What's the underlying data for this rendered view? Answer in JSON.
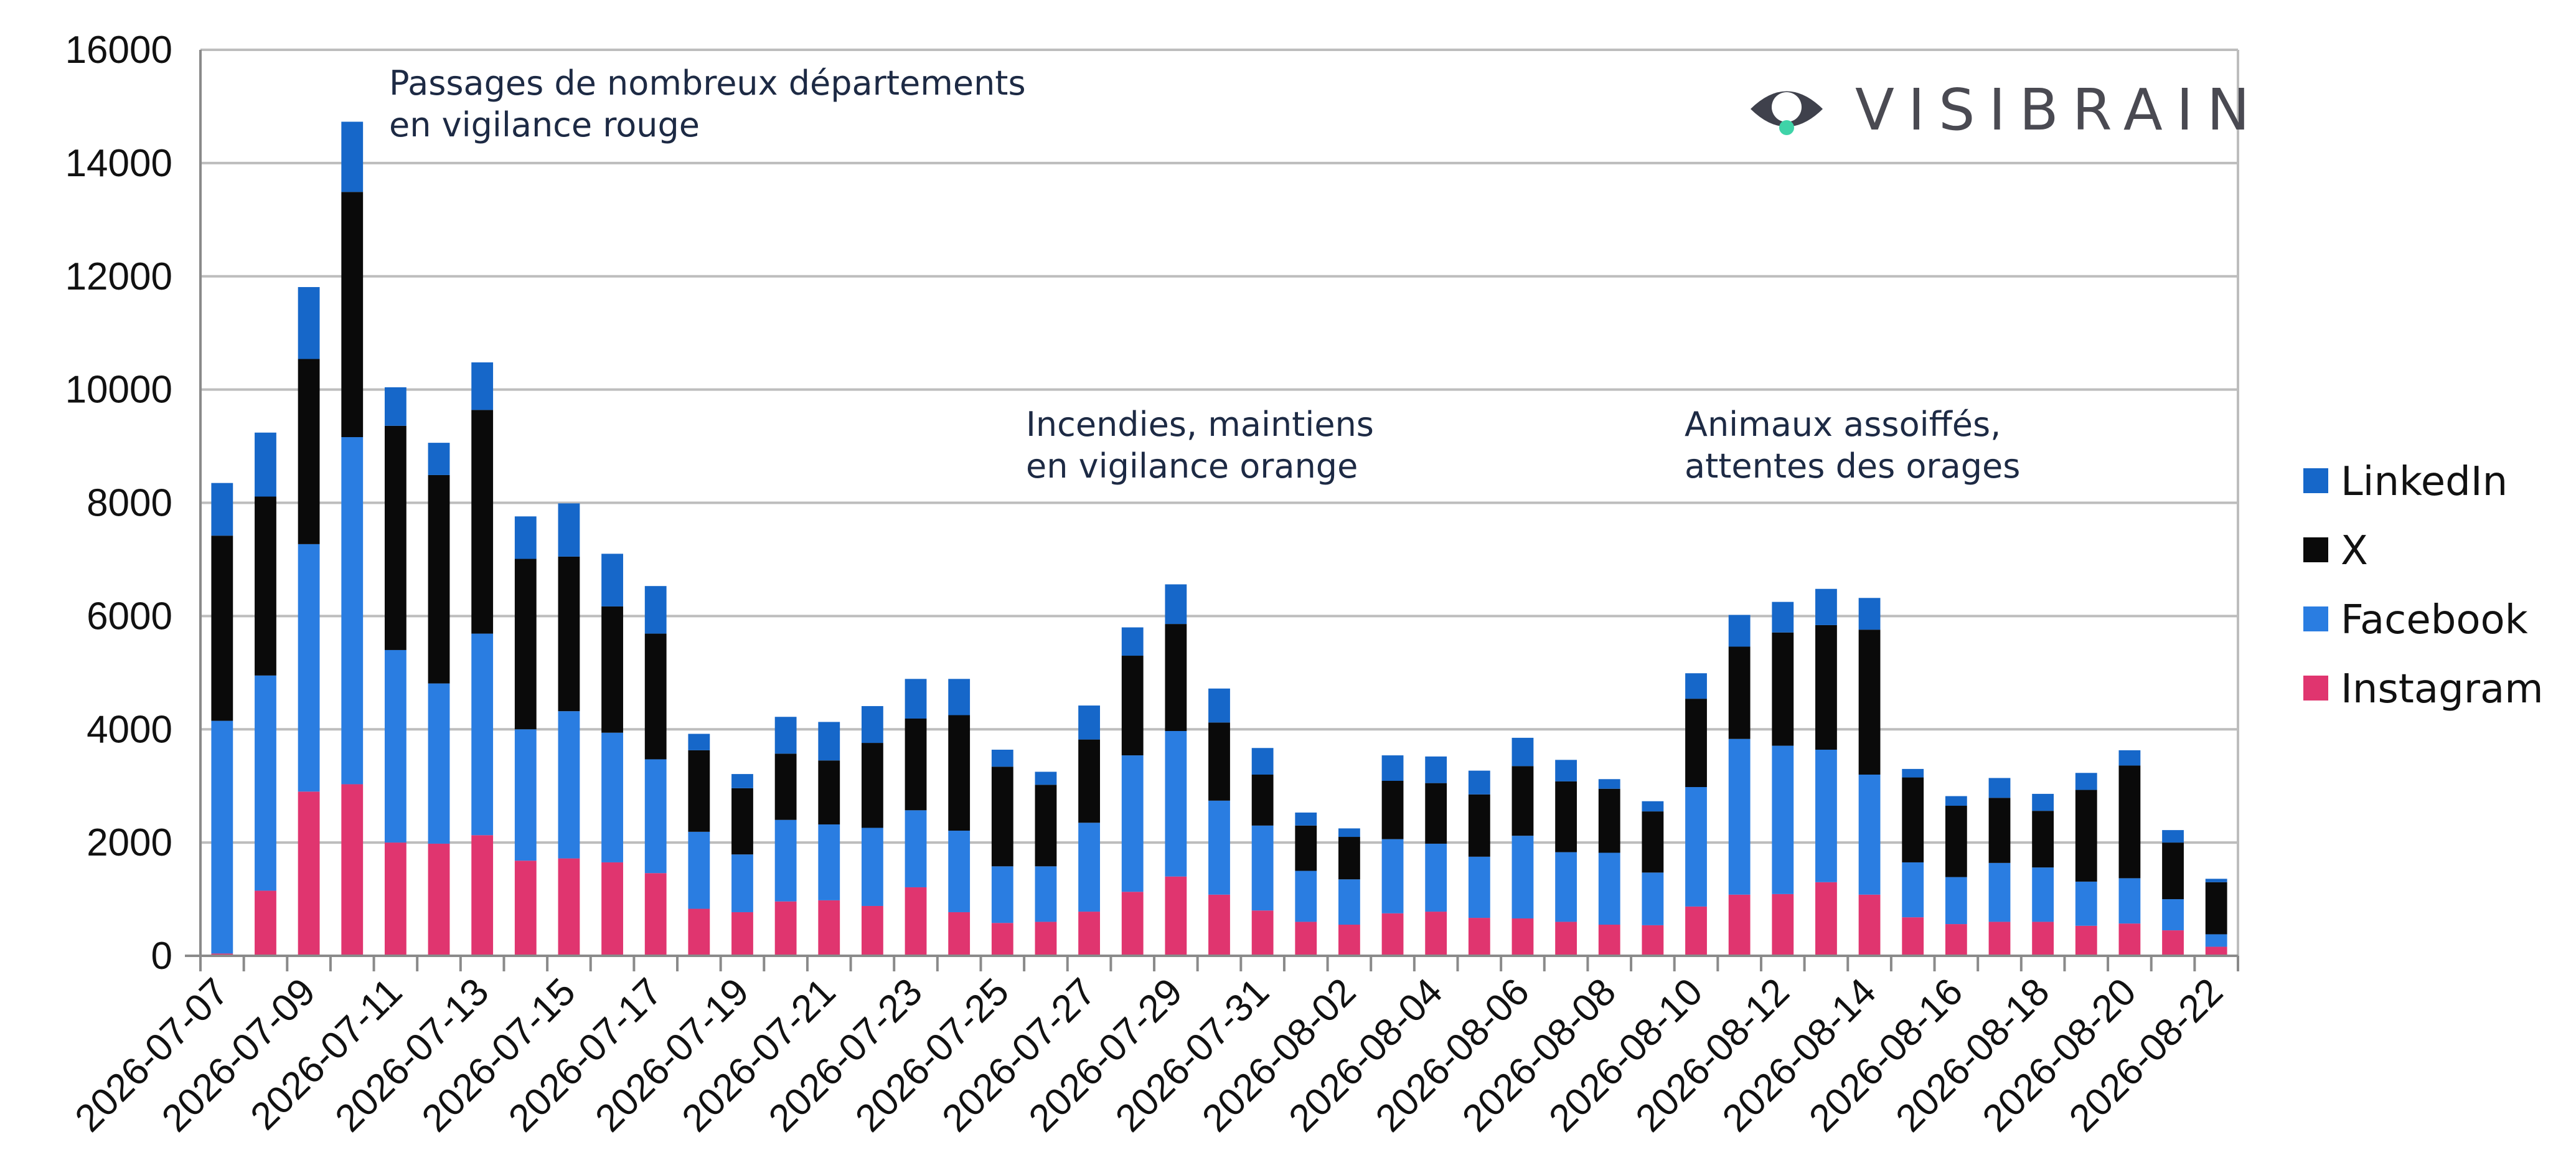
{
  "chart_data": {
    "type": "bar",
    "stacked": true,
    "categories": [
      "2026-07-07",
      "2026-07-08",
      "2026-07-09",
      "2026-07-10",
      "2026-07-11",
      "2026-07-12",
      "2026-07-13",
      "2026-07-14",
      "2026-07-15",
      "2026-07-16",
      "2026-07-17",
      "2026-07-18",
      "2026-07-19",
      "2026-07-20",
      "2026-07-21",
      "2026-07-22",
      "2026-07-23",
      "2026-07-24",
      "2026-07-25",
      "2026-07-26",
      "2026-07-27",
      "2026-07-28",
      "2026-07-29",
      "2026-07-30",
      "2026-07-31",
      "2026-08-01",
      "2026-08-02",
      "2026-08-03",
      "2026-08-04",
      "2026-08-05",
      "2026-08-06",
      "2026-08-07",
      "2026-08-08",
      "2026-08-09",
      "2026-08-10",
      "2026-08-11",
      "2026-08-12",
      "2026-08-13",
      "2026-08-14",
      "2026-08-15",
      "2026-08-16",
      "2026-08-17",
      "2026-08-18",
      "2026-08-19",
      "2026-08-20",
      "2026-08-21",
      "2026-08-22"
    ],
    "tick_labels": [
      "2026-07-07",
      "2026-07-09",
      "2026-07-11",
      "2026-07-13",
      "2026-07-15",
      "2026-07-17",
      "2026-07-19",
      "2026-07-21",
      "2026-07-23",
      "2026-07-25",
      "2026-07-27",
      "2026-07-29",
      "2026-07-31",
      "2026-08-02",
      "2026-08-04",
      "2026-08-06",
      "2026-08-08",
      "2026-08-10",
      "2026-08-12",
      "2026-08-14",
      "2026-08-16",
      "2026-08-18",
      "2026-08-20",
      "2026-08-22"
    ],
    "series": [
      {
        "name": "Instagram",
        "color": "#e0356f",
        "values": [
          40,
          1150,
          2900,
          3030,
          2000,
          1980,
          2130,
          1680,
          1720,
          1650,
          1460,
          830,
          770,
          960,
          980,
          880,
          1210,
          770,
          580,
          600,
          780,
          1130,
          1400,
          1080,
          800,
          600,
          550,
          750,
          780,
          670,
          660,
          600,
          550,
          540,
          870,
          1080,
          1090,
          1300,
          1080,
          680,
          560,
          600,
          600,
          530,
          570,
          450,
          160
        ]
      },
      {
        "name": "Facebook",
        "color": "#2a7de1",
        "values": [
          4110,
          3800,
          4370,
          6130,
          3400,
          2830,
          3560,
          2320,
          2600,
          2290,
          2010,
          1360,
          1020,
          1440,
          1340,
          1380,
          1360,
          1440,
          1000,
          980,
          1570,
          2410,
          2570,
          1660,
          1500,
          900,
          800,
          1310,
          1200,
          1080,
          1460,
          1230,
          1270,
          930,
          2110,
          2750,
          2620,
          2340,
          2120,
          970,
          830,
          1040,
          960,
          780,
          800,
          550,
          220
        ]
      },
      {
        "name": "X",
        "color": "#0a0a0a",
        "values": [
          3270,
          3160,
          3270,
          4330,
          3960,
          3680,
          3950,
          3010,
          2730,
          2230,
          2220,
          1440,
          1170,
          1170,
          1130,
          1500,
          1620,
          2040,
          1760,
          1440,
          1470,
          1760,
          1890,
          1380,
          900,
          800,
          750,
          1030,
          1070,
          1100,
          1230,
          1250,
          1130,
          1080,
          1560,
          1630,
          2000,
          2200,
          2560,
          1500,
          1260,
          1150,
          1000,
          1620,
          1990,
          1000,
          920
        ]
      },
      {
        "name": "LinkedIn",
        "color": "#1667c9",
        "values": [
          930,
          1130,
          1270,
          1240,
          680,
          570,
          840,
          750,
          940,
          930,
          840,
          290,
          250,
          650,
          680,
          650,
          700,
          640,
          300,
          230,
          600,
          500,
          700,
          600,
          470,
          230,
          150,
          450,
          470,
          420,
          500,
          380,
          170,
          180,
          450,
          560,
          540,
          640,
          560,
          150,
          170,
          350,
          300,
          300,
          270,
          220,
          60
        ]
      }
    ],
    "ylim": [
      0,
      16000
    ],
    "yticks": [
      "0",
      "2000",
      "4000",
      "6000",
      "8000",
      "10000",
      "12000",
      "14000",
      "16000"
    ],
    "grid": true,
    "legend_position": "right",
    "annotations": [
      {
        "lines": [
          "Passages de nombreux départements",
          "en vigilance rouge"
        ]
      },
      {
        "lines": [
          "Incendies, maintiens",
          "en vigilance orange"
        ]
      },
      {
        "lines": [
          "Animaux assoiffés,",
          "attentes des orages"
        ]
      }
    ]
  },
  "brand": {
    "name": "VISIBRAIN",
    "logo_icon": "eye-icon",
    "accent": "#3fd3a8"
  }
}
